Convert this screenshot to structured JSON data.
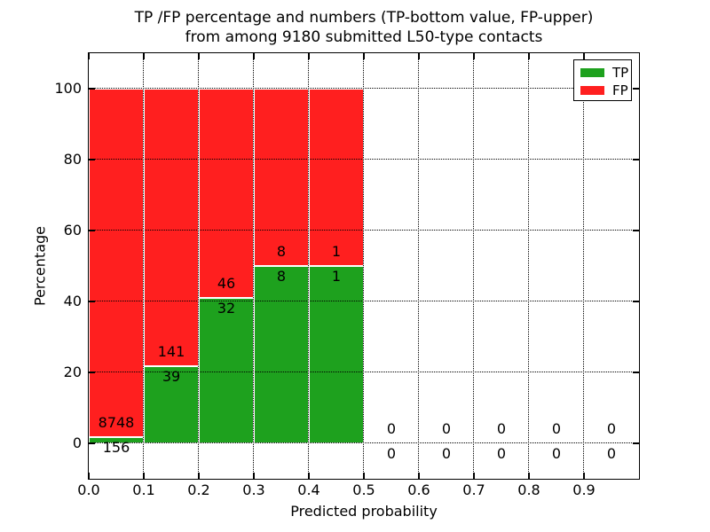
{
  "chart_data": {
    "type": "bar",
    "stacked": true,
    "title_lines": [
      "TP /FP percentage and numbers (TP-bottom value, FP-upper)",
      "from among 9180 submitted L50-type contacts"
    ],
    "xlabel": "Predicted probability",
    "ylabel": "Percentage",
    "xlim": [
      0.0,
      1.0
    ],
    "ylim": [
      -10,
      110
    ],
    "xticks": [
      {
        "v": 0.0,
        "label": "0.0"
      },
      {
        "v": 0.1,
        "label": "0.1"
      },
      {
        "v": 0.2,
        "label": "0.2"
      },
      {
        "v": 0.3,
        "label": "0.3"
      },
      {
        "v": 0.4,
        "label": "0.4"
      },
      {
        "v": 0.5,
        "label": "0.5"
      },
      {
        "v": 0.6,
        "label": "0.6"
      },
      {
        "v": 0.7,
        "label": "0.7"
      },
      {
        "v": 0.8,
        "label": "0.8"
      },
      {
        "v": 0.9,
        "label": "0.9"
      }
    ],
    "yticks": [
      {
        "v": 0,
        "label": "0"
      },
      {
        "v": 20,
        "label": "20"
      },
      {
        "v": 40,
        "label": "40"
      },
      {
        "v": 60,
        "label": "60"
      },
      {
        "v": 80,
        "label": "80"
      },
      {
        "v": 100,
        "label": "100"
      }
    ],
    "grid": {
      "style": "dotted",
      "color": "#000000",
      "drawn_above_bars": true
    },
    "total_submitted": 9180,
    "bins": [
      {
        "range": [
          0.0,
          0.1
        ],
        "tp_count": 156,
        "fp_count": 8748,
        "tp_pct": 1.75,
        "fp_pct": 98.25
      },
      {
        "range": [
          0.1,
          0.2
        ],
        "tp_count": 39,
        "fp_count": 141,
        "tp_pct": 21.67,
        "fp_pct": 78.33
      },
      {
        "range": [
          0.2,
          0.3
        ],
        "tp_count": 32,
        "fp_count": 46,
        "tp_pct": 41.03,
        "fp_pct": 58.97
      },
      {
        "range": [
          0.3,
          0.4
        ],
        "tp_count": 8,
        "fp_count": 8,
        "tp_pct": 50,
        "fp_pct": 50
      },
      {
        "range": [
          0.4,
          0.5
        ],
        "tp_count": 1,
        "fp_count": 1,
        "tp_pct": 50,
        "fp_pct": 50
      },
      {
        "range": [
          0.5,
          0.6
        ],
        "tp_count": 0,
        "fp_count": 0,
        "tp_pct": 0,
        "fp_pct": 0
      },
      {
        "range": [
          0.6,
          0.7
        ],
        "tp_count": 0,
        "fp_count": 0,
        "tp_pct": 0,
        "fp_pct": 0
      },
      {
        "range": [
          0.7,
          0.8
        ],
        "tp_count": 0,
        "fp_count": 0,
        "tp_pct": 0,
        "fp_pct": 0
      },
      {
        "range": [
          0.8,
          0.9
        ],
        "tp_count": 0,
        "fp_count": 0,
        "tp_pct": 0,
        "fp_pct": 0
      },
      {
        "range": [
          0.9,
          1.0
        ],
        "tp_count": 0,
        "fp_count": 0,
        "tp_pct": 0,
        "fp_pct": 0
      }
    ],
    "legend": {
      "position": "upper-right",
      "entries": [
        {
          "name": "TP",
          "color": "#1ea11e"
        },
        {
          "name": "FP",
          "color": "#ff1f1f"
        }
      ]
    },
    "colors": {
      "tp": "#1ea11e",
      "fp": "#ff1f1f",
      "bar_edge": "#ffffff",
      "axis": "#000000"
    }
  }
}
